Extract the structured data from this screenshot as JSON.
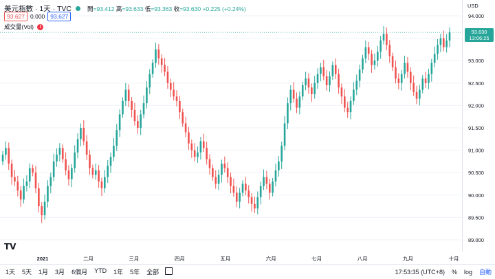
{
  "legend": {
    "symbol": "美元指數 · 1天 · TVC",
    "open_label": "開",
    "open": "=93.412",
    "high_label": "高",
    "high": "=93.633",
    "low_label": "低",
    "low": "=93.363",
    "close_label": "收",
    "close": "=93.630",
    "change": "+0.225 (+0.24%)",
    "sell_price": "93.627",
    "spread": "0.000",
    "buy_price": "93.627",
    "volume_label": "成交量(Vol)",
    "volume_warning": "!"
  },
  "price_axis": {
    "currency": "USD",
    "last_price": "93.630",
    "countdown": "13:06:25"
  },
  "bottom_bar": {
    "ranges": [
      "1天",
      "5天",
      "1月",
      "3月",
      "6個月",
      "YTD",
      "1年",
      "5年",
      "全部"
    ],
    "clock": "17:53:35 (UTC+8)",
    "percent": "%",
    "log": "log",
    "auto": "自動"
  },
  "colors": {
    "up": "#26a69a",
    "down": "#ef5350",
    "grid": "#f0f3fa"
  },
  "chart_data": {
    "type": "candlestick",
    "y_ticks": [
      "94.000",
      "93.500",
      "93.000",
      "92.500",
      "92.000",
      "91.500",
      "91.000",
      "90.500",
      "90.000",
      "89.500",
      "89.000"
    ],
    "ylim": [
      88.8,
      94.2
    ],
    "x_ticks": [
      "2021",
      "二月",
      "三月",
      "四月",
      "五月",
      "六月",
      "七月",
      "八月",
      "九月",
      "十月"
    ],
    "closes": [
      90.9,
      91.05,
      90.7,
      90.4,
      90.3,
      90.1,
      89.9,
      90.2,
      90.3,
      90.6,
      90.5,
      90.15,
      89.75,
      89.55,
      89.85,
      90.2,
      90.4,
      90.75,
      90.9,
      91.05,
      90.8,
      90.55,
      90.35,
      90.6,
      90.95,
      91.25,
      91.5,
      91.2,
      90.9,
      90.6,
      90.45,
      90.55,
      90.3,
      90.15,
      90.4,
      90.65,
      90.85,
      91.1,
      91.45,
      91.8,
      92.1,
      92.35,
      92.1,
      91.9,
      91.65,
      91.5,
      91.8,
      92.05,
      92.4,
      92.7,
      92.95,
      93.25,
      93.05,
      92.9,
      92.75,
      92.5,
      92.35,
      92.2,
      92.1,
      91.85,
      91.6,
      91.4,
      91.15,
      91.0,
      90.85,
      90.95,
      91.2,
      91.05,
      90.8,
      90.6,
      90.4,
      90.25,
      90.45,
      90.7,
      90.6,
      90.4,
      90.2,
      90.05,
      89.85,
      90.05,
      90.25,
      90.1,
      89.95,
      89.8,
      89.7,
      89.95,
      90.2,
      90.4,
      90.25,
      90.05,
      90.3,
      90.55,
      90.75,
      91.1,
      91.6,
      92.05,
      92.35,
      92.15,
      91.95,
      92.2,
      92.45,
      92.6,
      92.4,
      92.25,
      92.5,
      92.7,
      92.85,
      92.65,
      92.45,
      92.65,
      92.9,
      92.7,
      92.4,
      92.2,
      91.95,
      91.85,
      92.1,
      92.35,
      92.55,
      92.8,
      93.05,
      93.3,
      93.15,
      92.9,
      93.0,
      93.2,
      93.45,
      93.6,
      93.35,
      93.1,
      92.85,
      92.6,
      92.5,
      92.7,
      92.95,
      92.75,
      92.5,
      92.3,
      92.15,
      92.35,
      92.6,
      92.5,
      92.7,
      92.95,
      93.15,
      93.35,
      93.5,
      93.3,
      93.45,
      93.63
    ]
  }
}
